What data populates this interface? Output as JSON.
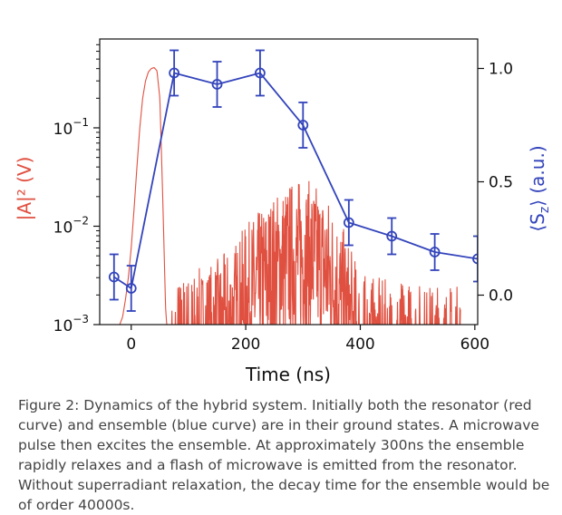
{
  "chart_data": {
    "type": "line",
    "xlabel": "Time (ns)",
    "xlim": [
      -55,
      605
    ],
    "x_ticks": [
      0,
      200,
      400,
      600
    ],
    "left_axis": {
      "label": "|A|² (V)",
      "scale": "log",
      "lim": [
        0.001,
        0.8
      ],
      "ticks": [
        {
          "base": "10",
          "exp": "−3",
          "value": 0.001
        },
        {
          "base": "10",
          "exp": "−2",
          "value": 0.01
        },
        {
          "base": "10",
          "exp": "−1",
          "value": 0.1
        }
      ]
    },
    "right_axis": {
      "label_main": "⟨S",
      "label_sub": "z",
      "label_tail": "⟩ (a.u.)",
      "scale": "linear",
      "lim": [
        -0.13,
        1.13
      ],
      "ticks": [
        "0.0",
        "0.5",
        "1.0"
      ]
    },
    "series": [
      {
        "axis": "left",
        "color": "#e05040",
        "x": [
          -40,
          -30,
          -20,
          -15,
          -10,
          -5,
          0,
          5,
          10,
          15,
          20,
          25,
          30,
          35,
          40,
          45,
          50,
          55,
          60,
          62,
          65,
          70,
          80,
          100,
          120,
          140,
          160,
          180,
          200,
          220,
          240,
          260,
          280,
          300,
          320,
          340,
          360,
          380,
          400,
          420,
          440,
          460,
          480,
          500,
          520,
          540,
          560,
          575
        ],
        "y": [
          0.001,
          0.001,
          0.001,
          0.0012,
          0.0018,
          0.003,
          0.006,
          0.015,
          0.04,
          0.1,
          0.2,
          0.3,
          0.37,
          0.4,
          0.41,
          0.38,
          0.2,
          0.02,
          0.0015,
          0.001,
          0.001,
          0.001,
          0.0018,
          0.002,
          0.0022,
          0.0025,
          0.003,
          0.004,
          0.006,
          0.008,
          0.011,
          0.014,
          0.017,
          0.018,
          0.016,
          0.013,
          0.008,
          0.004,
          0.002,
          0.0018,
          0.0017,
          0.0016,
          0.0017,
          0.0016,
          0.0015,
          0.0016,
          0.0015,
          0.0015
        ]
      },
      {
        "axis": "right",
        "color": "#3344bb",
        "x": [
          -30,
          0,
          75,
          150,
          225,
          300,
          380,
          455,
          530,
          605
        ],
        "y": [
          0.08,
          0.03,
          0.98,
          0.93,
          0.98,
          0.75,
          0.32,
          0.26,
          0.19,
          0.16
        ],
        "err": [
          0.1,
          0.1,
          0.1,
          0.1,
          0.1,
          0.1,
          0.1,
          0.08,
          0.08,
          0.1
        ]
      }
    ]
  },
  "caption": "Figure 2: Dynamics of the hybrid system. Initially both the resonator (red curve) and ensemble (blue curve) are in their ground states. A microwave pulse then excites the ensemble. At approximately 300ns the ensemble rapidly relaxes and a flash of microwave is emitted from the resonator. Without superradiant relaxation, the decay time for the ensemble would be of order 40000s."
}
